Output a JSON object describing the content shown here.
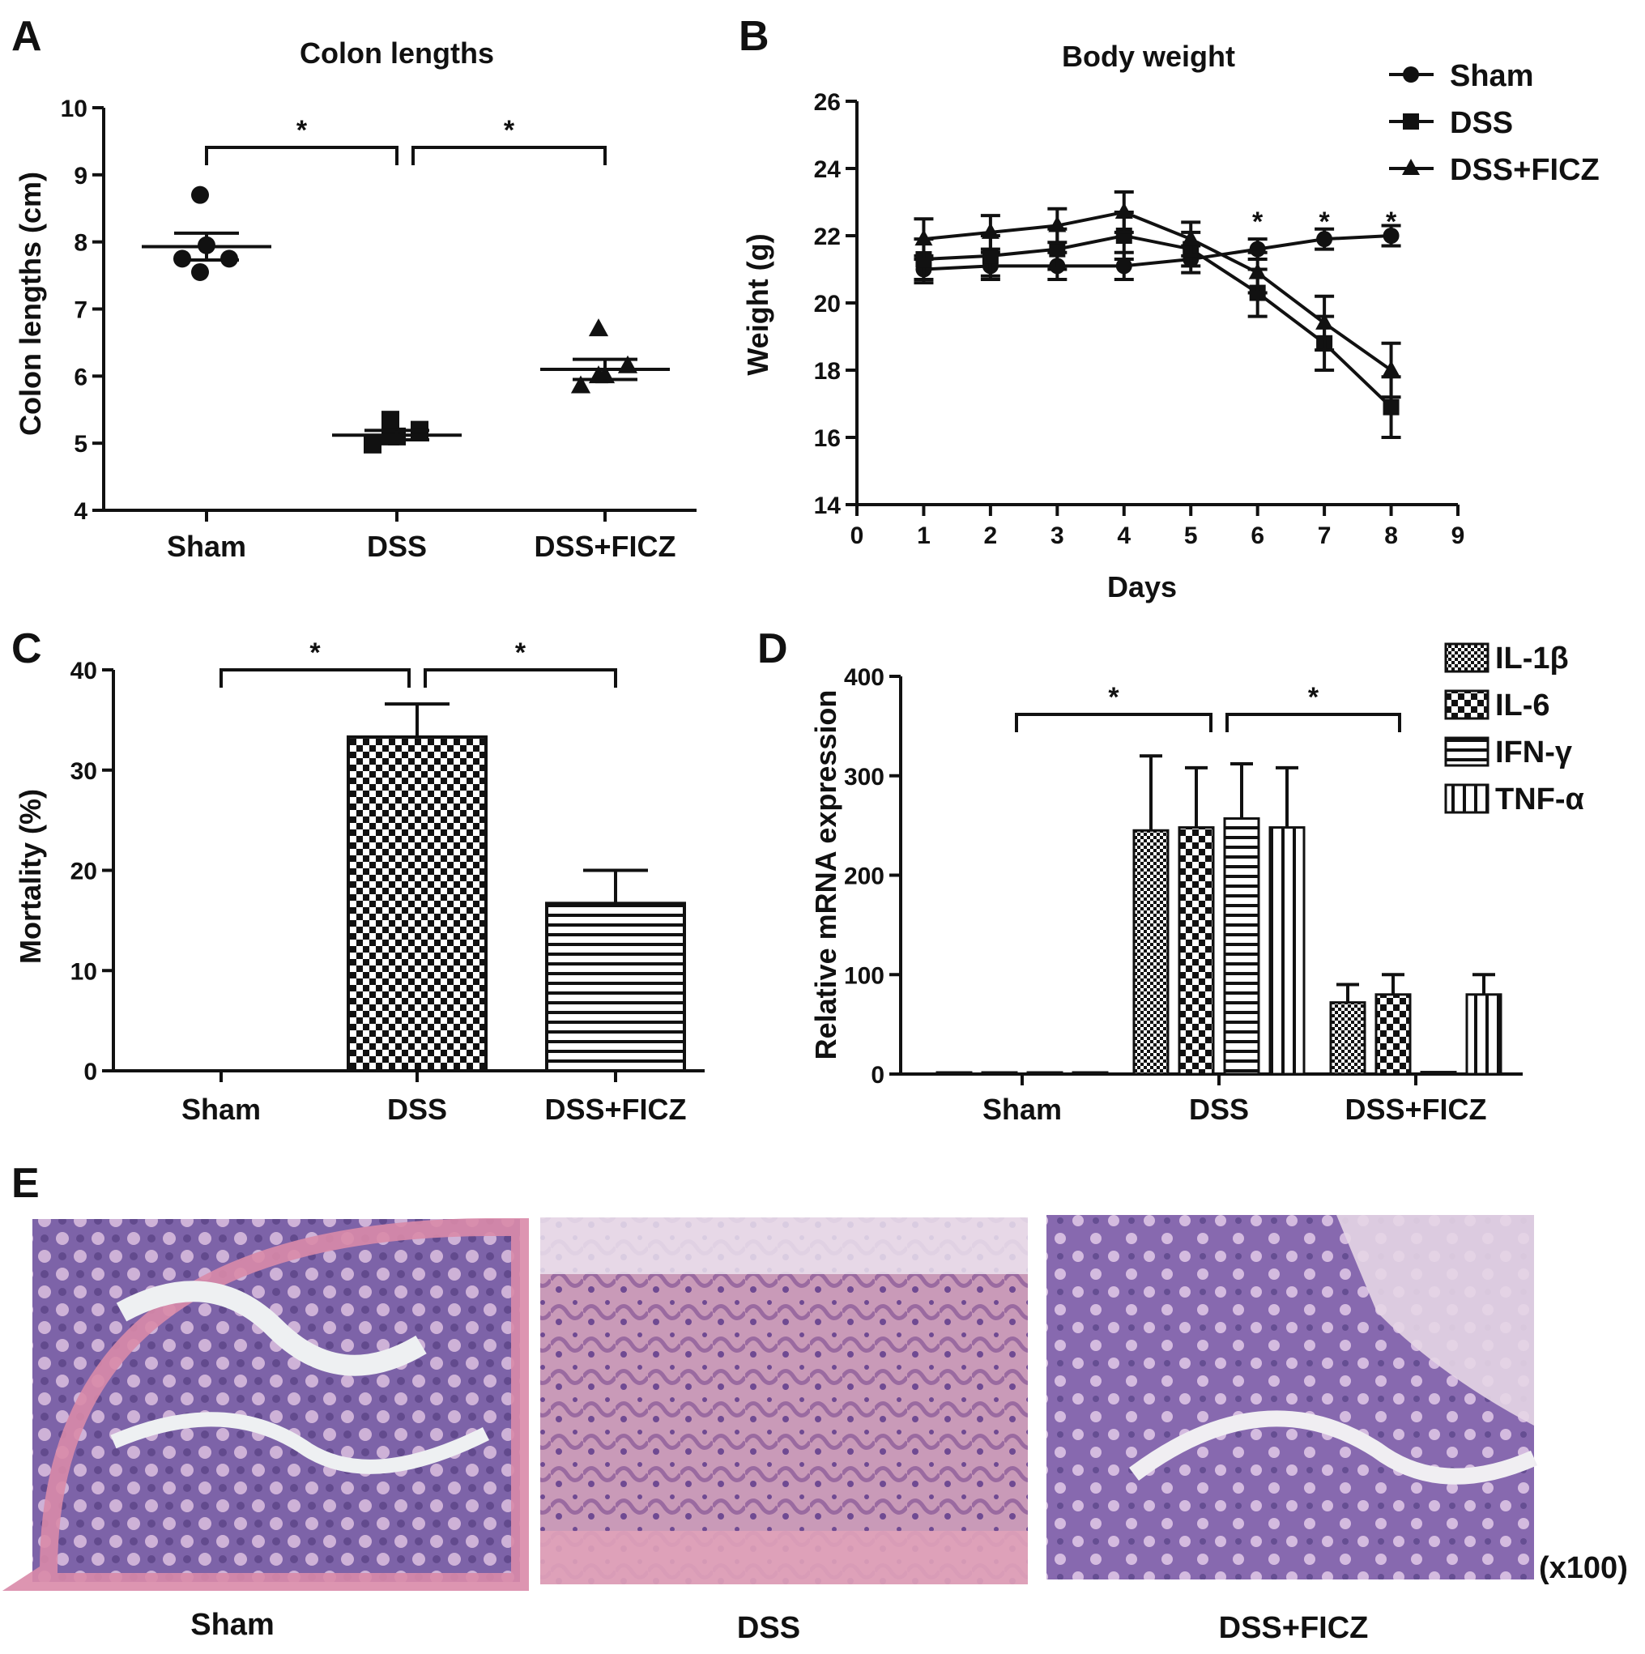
{
  "panels": {
    "A": "A",
    "B": "B",
    "C": "C",
    "D": "D",
    "E": "E"
  },
  "chart_data": [
    {
      "id": "A",
      "type": "scatter",
      "title": "Colon lengths",
      "xlabel": "",
      "ylabel": "Colon lengths (cm)",
      "ylim": [
        4,
        10
      ],
      "yticks": [
        "4",
        "5",
        "6",
        "7",
        "8",
        "9",
        "10"
      ],
      "categories": [
        "Sham",
        "DSS",
        "DSS+FICZ"
      ],
      "series": [
        {
          "category": "Sham",
          "marker": "circle",
          "points": [
            8.7,
            7.95,
            7.75,
            7.55,
            7.75
          ],
          "mean": 7.93,
          "sem": 0.2
        },
        {
          "category": "DSS",
          "marker": "square",
          "points": [
            5.35,
            5.1,
            4.98,
            5.1,
            5.2
          ],
          "mean": 5.12,
          "sem": 0.07
        },
        {
          "category": "DSS+FICZ",
          "marker": "triangle",
          "points": [
            6.7,
            6.0,
            5.85,
            6.0,
            6.15
          ],
          "mean": 6.1,
          "sem": 0.15
        }
      ],
      "significance": [
        {
          "from": "Sham",
          "to": "DSS",
          "label": "*"
        },
        {
          "from": "DSS",
          "to": "DSS+FICZ",
          "label": "*"
        }
      ]
    },
    {
      "id": "B",
      "type": "line",
      "title": "Body weight",
      "xlabel": "Days",
      "ylabel": "Weight (g)",
      "xlim": [
        0,
        9
      ],
      "ylim": [
        14,
        26
      ],
      "xticks": [
        "0",
        "1",
        "2",
        "3",
        "4",
        "5",
        "6",
        "7",
        "8",
        "9"
      ],
      "yticks": [
        "14",
        "16",
        "18",
        "20",
        "22",
        "24",
        "26"
      ],
      "x": [
        1,
        2,
        3,
        4,
        5,
        6,
        7,
        8
      ],
      "series": [
        {
          "name": "Sham",
          "marker": "circle",
          "values": [
            21.0,
            21.1,
            21.1,
            21.1,
            21.3,
            21.6,
            21.9,
            22.0
          ],
          "errors": [
            0.4,
            0.4,
            0.4,
            0.4,
            0.4,
            0.3,
            0.3,
            0.3
          ]
        },
        {
          "name": "DSS",
          "marker": "square",
          "values": [
            21.3,
            21.4,
            21.6,
            22.0,
            21.6,
            20.3,
            18.8,
            16.9
          ],
          "errors": [
            0.6,
            0.6,
            0.6,
            0.7,
            0.5,
            0.7,
            0.8,
            0.9
          ]
        },
        {
          "name": "DSS+FICZ",
          "marker": "triangle",
          "values": [
            21.9,
            22.1,
            22.3,
            22.7,
            21.9,
            20.9,
            19.4,
            18.0
          ],
          "errors": [
            0.6,
            0.5,
            0.5,
            0.6,
            0.5,
            0.6,
            0.8,
            0.8
          ]
        }
      ],
      "annotations": [
        {
          "x": 6,
          "label": "*"
        },
        {
          "x": 7,
          "label": "*"
        },
        {
          "x": 8,
          "label": "*"
        }
      ],
      "legend_position": "top-right"
    },
    {
      "id": "C",
      "type": "bar",
      "title": "",
      "xlabel": "",
      "ylabel": "Mortality (%)",
      "ylim": [
        0,
        40
      ],
      "yticks": [
        "0",
        "10",
        "20",
        "30",
        "40"
      ],
      "categories": [
        "Sham",
        "DSS",
        "DSS+FICZ"
      ],
      "values": [
        0,
        33.3,
        16.7
      ],
      "errors": [
        0,
        3.3,
        3.3
      ],
      "patterns": [
        "none",
        "checker",
        "hstripes"
      ],
      "significance": [
        {
          "from": "Sham",
          "to": "DSS",
          "label": "*"
        },
        {
          "from": "DSS",
          "to": "DSS+FICZ",
          "label": "*"
        }
      ]
    },
    {
      "id": "D",
      "type": "bar",
      "title": "",
      "xlabel": "",
      "ylabel": "Relative mRNA expression",
      "ylim": [
        0,
        400
      ],
      "yticks": [
        "0",
        "100",
        "200",
        "300",
        "400"
      ],
      "categories": [
        "Sham",
        "DSS",
        "DSS+FICZ"
      ],
      "series": [
        {
          "name": "IL-1β",
          "pattern": "finecheck",
          "values": [
            1,
            245,
            72
          ],
          "errors": [
            0,
            75,
            18
          ]
        },
        {
          "name": "IL-6",
          "pattern": "checker",
          "values": [
            1,
            248,
            80
          ],
          "errors": [
            0,
            60,
            20
          ]
        },
        {
          "name": "IFN-γ",
          "pattern": "hstripes",
          "values": [
            1,
            257,
            2
          ],
          "errors": [
            0,
            55,
            0
          ]
        },
        {
          "name": "TNF-α",
          "pattern": "vstripes",
          "values": [
            1,
            248,
            80
          ],
          "errors": [
            0,
            60,
            20
          ]
        }
      ],
      "significance": [
        {
          "from": "Sham",
          "to": "DSS",
          "label": "*"
        },
        {
          "from": "DSS",
          "to": "DSS+FICZ",
          "label": "*"
        }
      ],
      "legend_position": "top-right"
    }
  ],
  "histology": {
    "images": [
      {
        "caption": "Sham"
      },
      {
        "caption": "DSS"
      },
      {
        "caption": "DSS+FICZ"
      }
    ],
    "magnification": "(x100)"
  }
}
